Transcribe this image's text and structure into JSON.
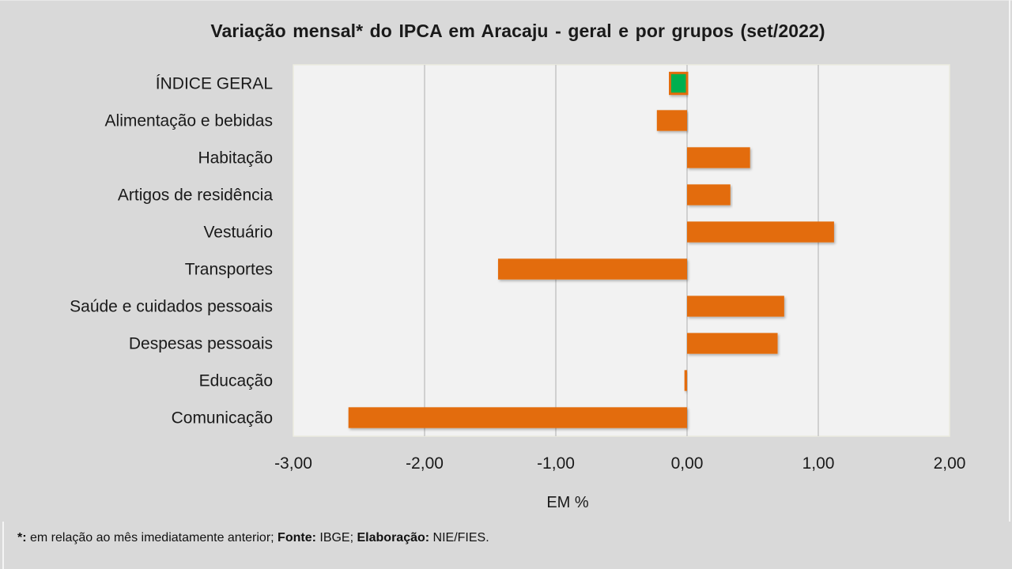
{
  "chart_data": {
    "type": "bar",
    "orientation": "horizontal",
    "title": "Variação  mensal* do IPCA em Aracaju  - geral e por grupos  (set/2022)",
    "xlabel": "EM %",
    "ylabel": "",
    "xlim": [
      -3,
      2
    ],
    "xticks": [
      -3,
      -2,
      -1,
      0,
      1,
      2
    ],
    "xtick_labels": [
      "-3,00",
      "-2,00",
      "-1,00",
      "0,00",
      "1,00",
      "2,00"
    ],
    "grid": "vertical",
    "categories": [
      "ÍNDICE GERAL",
      "Alimentação e bebidas",
      "Habitação",
      "Artigos de residência",
      "Vestuário",
      "Transportes",
      "Saúde e cuidados pessoais",
      "Despesas pessoais",
      "Educação",
      "Comunicação"
    ],
    "values": [
      -0.13,
      -0.23,
      0.48,
      0.33,
      1.12,
      -1.44,
      0.74,
      0.69,
      -0.02,
      -2.58
    ],
    "colors": {
      "highlight": "#00b050",
      "highlight_border": "#e36c0a",
      "default": "#e36c0a",
      "plot_background": "#f2f2f2",
      "gridline": "#d0d0d0",
      "page_background": "#d9d9d9"
    }
  },
  "footer": {
    "note_marker": "*:",
    "note_text": " em relação ao mês imediatamente  anterior; ",
    "source_label": "Fonte:",
    "source_text": " IBGE; ",
    "prepared_label": "Elaboração:",
    "prepared_text": " NIE/FIES."
  }
}
